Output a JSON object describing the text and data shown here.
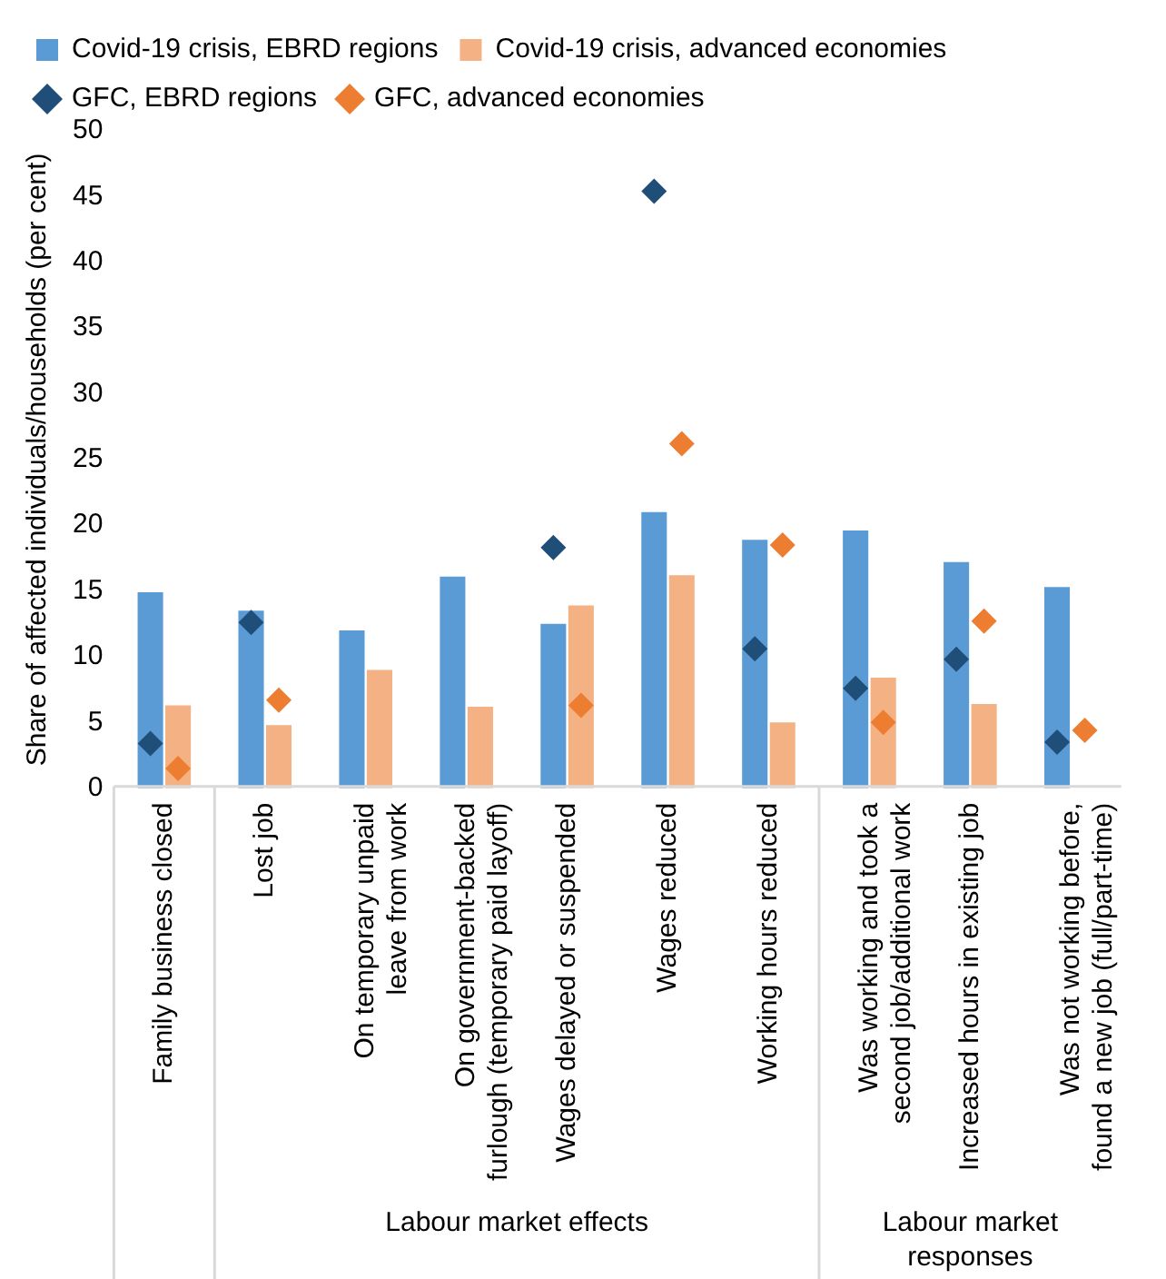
{
  "chart_data": {
    "type": "bar",
    "ylabel": "Share of affected individuals/households (per cent)",
    "categories": [
      "Family business closed",
      "Lost job",
      "On temporary unpaid\nleave from work",
      "On government-backed\nfurlough (temporary paid layoff)",
      "Wages delayed or suspended",
      "Wages reduced",
      "Working hours reduced",
      "Was working and took a\nsecond job/additional work",
      "Increased hours in existing job",
      "Was not working before,\nfound a new job (full/part-time)"
    ],
    "series": [
      {
        "name": "Covid-19 crisis, EBRD regions",
        "color": "#5b9bd5",
        "values": [
          14.9,
          13.5,
          12.0,
          16.1,
          12.5,
          21.0,
          18.9,
          19.6,
          17.2,
          15.3
        ]
      },
      {
        "name": "Covid-19 crisis, advanced economies",
        "color": "#f4b183",
        "values": [
          6.3,
          4.8,
          9.0,
          6.2,
          13.9,
          16.2,
          5.0,
          8.4,
          6.4,
          null
        ]
      },
      {
        "name": "GFC, EBRD regions",
        "type": "scatter",
        "color": "#1f4e79",
        "values": [
          3.4,
          12.6,
          null,
          null,
          18.3,
          45.4,
          10.6,
          7.6,
          9.8,
          3.5
        ]
      },
      {
        "name": "GFC, advanced economies",
        "type": "scatter",
        "color": "#ed7d31",
        "values": [
          1.5,
          6.7,
          null,
          null,
          6.3,
          26.2,
          18.5,
          5.0,
          12.7,
          4.4
        ]
      }
    ],
    "ylim": [
      0,
      50
    ],
    "yticks": [
      0,
      5,
      10,
      15,
      20,
      25,
      30,
      35,
      40,
      45,
      50
    ],
    "marker": "diamond",
    "grid": false,
    "legend": "top",
    "annotations": [
      "Labour market effects",
      "Labour market responses"
    ]
  }
}
